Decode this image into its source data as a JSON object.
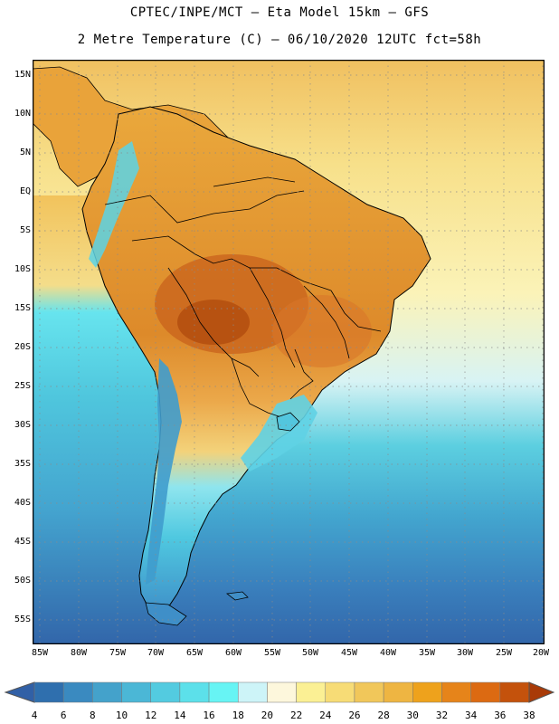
{
  "header": {
    "title_line1": "CPTEC/INPE/MCT –  Eta Model 15km – GFS",
    "title_line2": "2 Metre Temperature (C) – 06/10/2020 12UTC fct=58h"
  },
  "map": {
    "lat_labels": [
      "15N",
      "10N",
      "5N",
      "EQ",
      "5S",
      "10S",
      "15S",
      "20S",
      "25S",
      "30S",
      "35S",
      "40S",
      "45S",
      "50S",
      "55S"
    ],
    "lon_labels": [
      "85W",
      "80W",
      "75W",
      "70W",
      "65W",
      "60W",
      "55W",
      "50W",
      "45W",
      "40W",
      "35W",
      "30W",
      "25W",
      "20W"
    ],
    "ocean_color": "#3f86c0",
    "warm_color": "#e9a33a",
    "hot_color": "#c55a14",
    "cool_color": "#4fd0e3"
  },
  "colorbar": {
    "ticks": [
      "4",
      "6",
      "8",
      "10",
      "12",
      "14",
      "16",
      "18",
      "20",
      "22",
      "24",
      "26",
      "28",
      "30",
      "32",
      "34",
      "36",
      "38"
    ],
    "colors": [
      "#3160a6",
      "#2f6fae",
      "#3a8ac0",
      "#44a2cb",
      "#4bb7d6",
      "#53cbe0",
      "#5ce0ea",
      "#67f4f4",
      "#cdf4f8",
      "#fdf7dc",
      "#fbf094",
      "#f7dc76",
      "#f1c75a",
      "#eeb542",
      "#eea21c",
      "#e6841a",
      "#dc6a12",
      "#c4520c",
      "#a93a07"
    ]
  }
}
